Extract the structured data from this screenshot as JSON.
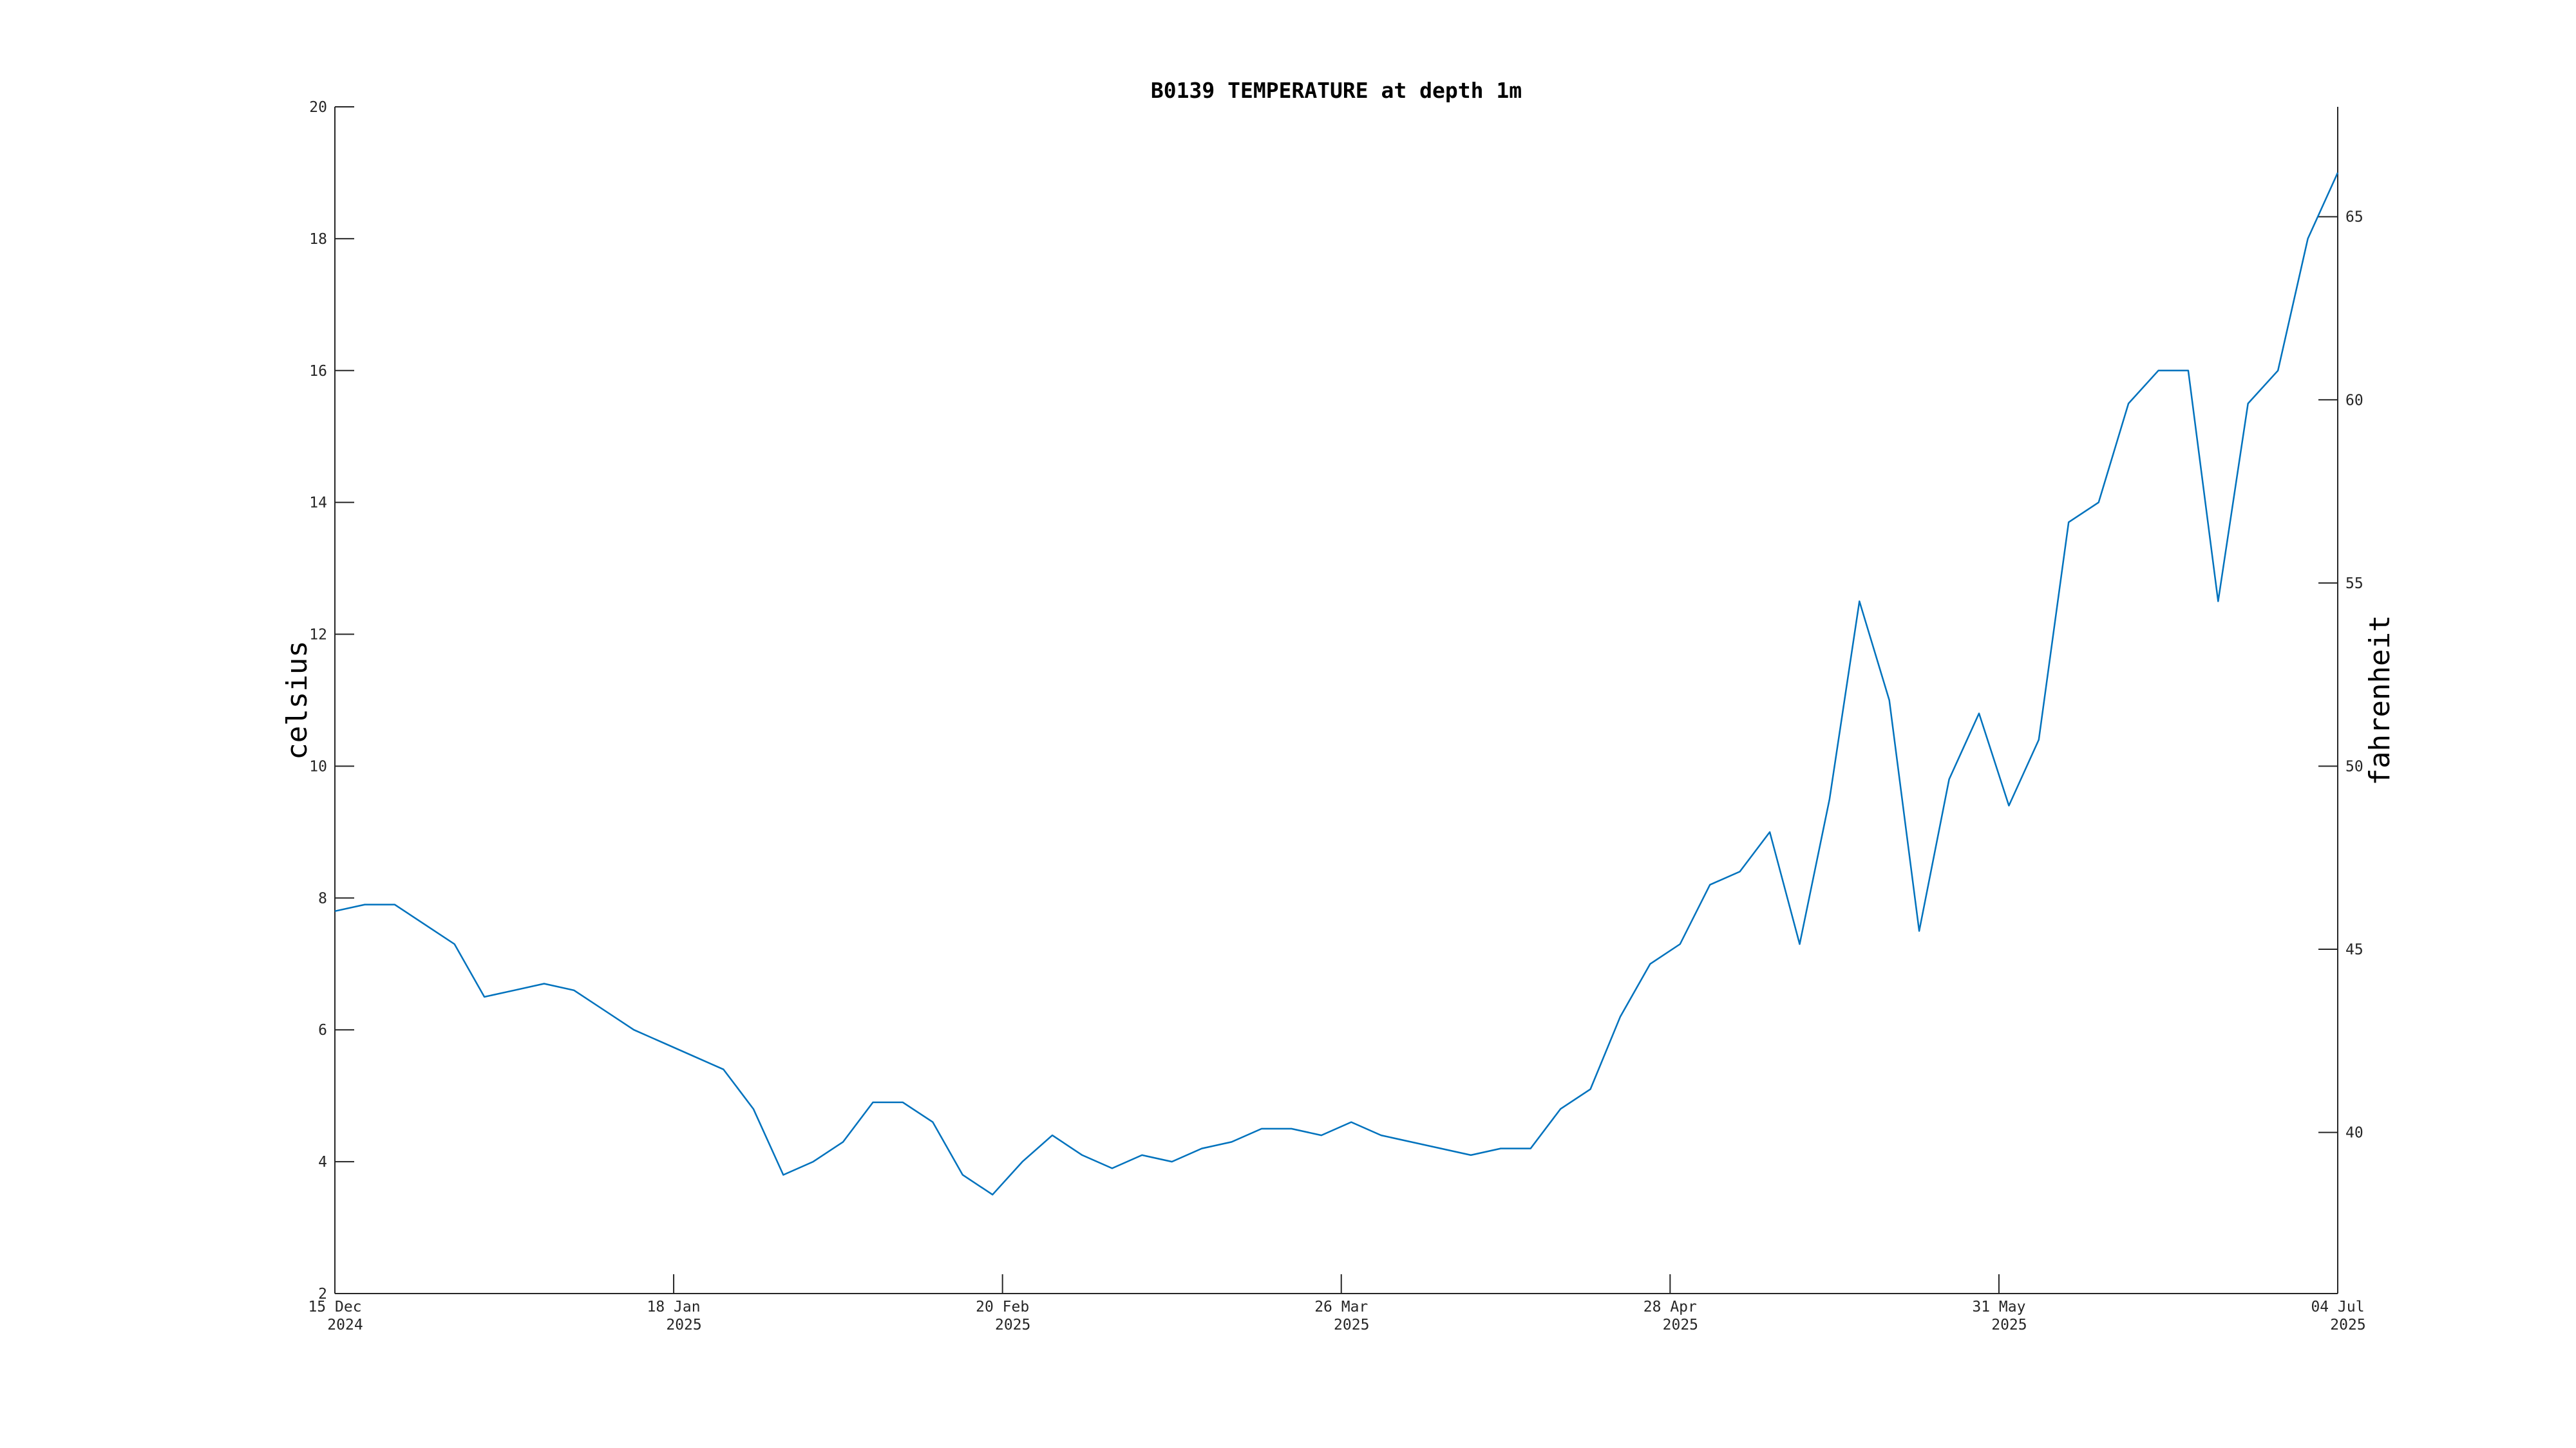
{
  "chart_data": {
    "type": "line",
    "title": "B0139 TEMPERATURE at depth 1m",
    "y_label": "celsius",
    "y2_label": "fahrenheit",
    "x": [
      "2024-12-15",
      "2024-12-18",
      "2024-12-21",
      "2024-12-24",
      "2024-12-27",
      "2024-12-30",
      "2025-01-02",
      "2025-01-05",
      "2025-01-08",
      "2025-01-11",
      "2025-01-14",
      "2025-01-17",
      "2025-01-20",
      "2025-01-23",
      "2025-01-26",
      "2025-01-29",
      "2025-02-01",
      "2025-02-04",
      "2025-02-07",
      "2025-02-10",
      "2025-02-13",
      "2025-02-16",
      "2025-02-19",
      "2025-02-22",
      "2025-02-25",
      "2025-02-28",
      "2025-03-03",
      "2025-03-06",
      "2025-03-09",
      "2025-03-12",
      "2025-03-15",
      "2025-03-18",
      "2025-03-21",
      "2025-03-24",
      "2025-03-27",
      "2025-03-30",
      "2025-04-02",
      "2025-04-05",
      "2025-04-08",
      "2025-04-11",
      "2025-04-14",
      "2025-04-17",
      "2025-04-20",
      "2025-04-23",
      "2025-04-26",
      "2025-04-29",
      "2025-05-02",
      "2025-05-05",
      "2025-05-08",
      "2025-05-11",
      "2025-05-14",
      "2025-05-17",
      "2025-05-20",
      "2025-05-23",
      "2025-05-26",
      "2025-05-29",
      "2025-06-01",
      "2025-06-04",
      "2025-06-07",
      "2025-06-10",
      "2025-06-13",
      "2025-06-16",
      "2025-06-19",
      "2025-06-22",
      "2025-06-25",
      "2025-06-28",
      "2025-07-01",
      "2025-07-04"
    ],
    "series": [
      {
        "name": "temperature",
        "color": "#0072bd",
        "values": [
          7.8,
          7.9,
          7.9,
          7.6,
          7.3,
          6.5,
          6.6,
          6.7,
          6.6,
          6.3,
          6.0,
          5.8,
          5.6,
          5.4,
          4.8,
          3.8,
          4.0,
          4.3,
          4.9,
          4.9,
          4.6,
          3.8,
          3.5,
          4.0,
          4.4,
          4.1,
          3.9,
          4.1,
          4.0,
          4.2,
          4.3,
          4.5,
          4.5,
          4.4,
          4.6,
          4.4,
          4.3,
          4.2,
          4.1,
          4.2,
          4.2,
          4.8,
          5.1,
          6.2,
          7.0,
          7.3,
          8.2,
          8.4,
          9.0,
          7.3,
          9.5,
          12.5,
          11.0,
          7.5,
          9.8,
          10.8,
          9.4,
          10.4,
          13.7,
          14.0,
          15.5,
          16.0,
          16.0,
          12.5,
          15.5,
          16.0,
          18.0,
          19.0
        ]
      }
    ],
    "xlim": [
      "2024-12-15",
      "2025-07-04"
    ],
    "xticks": [
      {
        "value": "2024-12-15",
        "label": [
          "15 Dec",
          "2024"
        ]
      },
      {
        "value": "2025-01-18",
        "label": [
          "18 Jan",
          "2025"
        ]
      },
      {
        "value": "2025-02-20",
        "label": [
          "20 Feb",
          "2025"
        ]
      },
      {
        "value": "2025-03-26",
        "label": [
          "26 Mar",
          "2025"
        ]
      },
      {
        "value": "2025-04-28",
        "label": [
          "28 Apr",
          "2025"
        ]
      },
      {
        "value": "2025-05-31",
        "label": [
          "31 May",
          "2025"
        ]
      },
      {
        "value": "2025-07-04",
        "label": [
          "04 Jul",
          "2025"
        ]
      }
    ],
    "ylim": [
      2,
      20
    ],
    "yticks": [
      2,
      4,
      6,
      8,
      10,
      12,
      14,
      16,
      18,
      20
    ],
    "y2lim": [
      35.6,
      68
    ],
    "y2ticks": [
      40,
      45,
      50,
      55,
      60,
      65
    ]
  }
}
